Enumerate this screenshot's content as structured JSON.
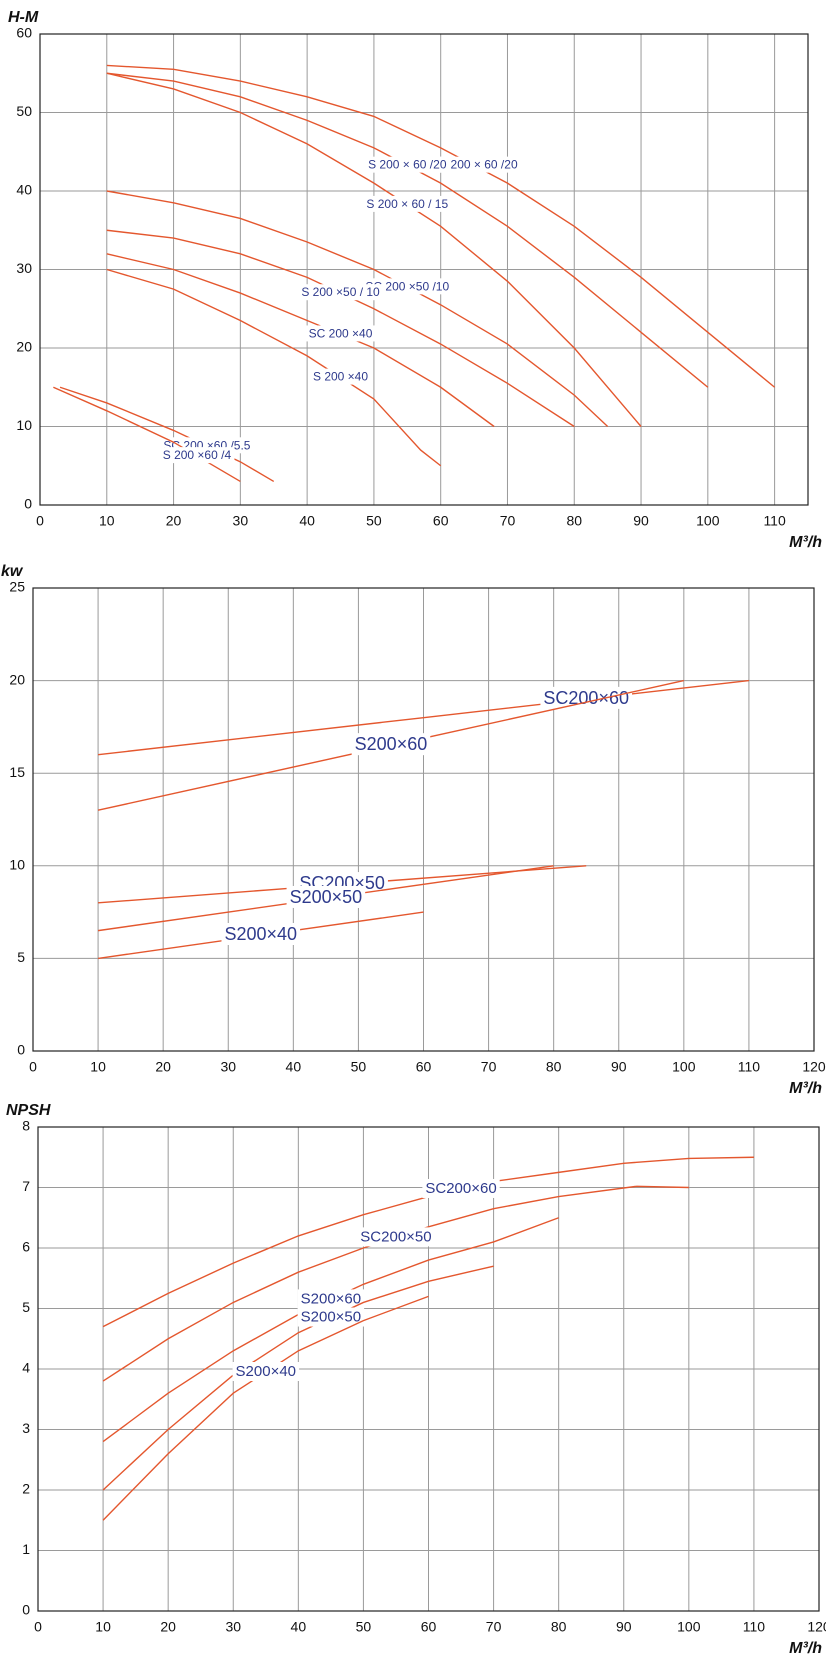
{
  "chart_data": [
    {
      "type": "line",
      "y_label": "H-M",
      "x_label": "M³/h",
      "color": "#e4572e",
      "grid": true,
      "xlim": [
        0,
        115
      ],
      "xticks": [
        0,
        10,
        20,
        30,
        40,
        50,
        60,
        70,
        80,
        90,
        100,
        110
      ],
      "ylim": [
        0,
        60
      ],
      "yticks": [
        0,
        10,
        20,
        30,
        40,
        50,
        60
      ],
      "series": [
        {
          "name": "SC 200 × 60 /20",
          "x": [
            10,
            20,
            30,
            40,
            50,
            60,
            70,
            80,
            90,
            100,
            110
          ],
          "values": [
            56,
            55.5,
            54,
            52,
            49.5,
            45.5,
            41,
            35.5,
            29,
            22,
            15
          ]
        },
        {
          "name": "S 200 × 60 /20",
          "x": [
            10,
            20,
            30,
            40,
            50,
            60,
            70,
            80,
            90,
            100
          ],
          "values": [
            55,
            54,
            52,
            49,
            45.5,
            41,
            35.5,
            29,
            22,
            15
          ]
        },
        {
          "name": "S 200 × 60 / 15",
          "x": [
            10,
            20,
            30,
            40,
            50,
            60,
            70,
            80,
            90
          ],
          "values": [
            55,
            53,
            50,
            46,
            41,
            35.5,
            28.5,
            20,
            10
          ]
        },
        {
          "name": "SC 200 ×50 /10",
          "x": [
            10,
            20,
            30,
            40,
            50,
            60,
            70,
            80,
            85
          ],
          "values": [
            40,
            38.5,
            36.5,
            33.5,
            30,
            25.5,
            20.5,
            14,
            10
          ]
        },
        {
          "name": "S 200 ×50 / 10",
          "x": [
            10,
            20,
            30,
            40,
            50,
            60,
            70,
            80
          ],
          "values": [
            35,
            34,
            32,
            29,
            25,
            20.5,
            15.5,
            10
          ]
        },
        {
          "name": "SC 200 ×40",
          "x": [
            10,
            20,
            30,
            40,
            50,
            60,
            68
          ],
          "values": [
            32,
            30,
            27,
            23.5,
            20,
            15,
            10
          ]
        },
        {
          "name": "S 200 ×40",
          "x": [
            10,
            20,
            30,
            40,
            50,
            57,
            60
          ],
          "values": [
            30,
            27.5,
            23.5,
            19,
            13.5,
            7,
            5
          ]
        },
        {
          "name": "SC 200 ×60 /5.5",
          "x": [
            3,
            10,
            20,
            30,
            35
          ],
          "values": [
            15,
            13,
            9.5,
            5.5,
            3
          ]
        },
        {
          "name": "S 200 ×60 /4",
          "x": [
            2,
            10,
            20,
            27,
            30
          ],
          "values": [
            15,
            12,
            8,
            4.5,
            3
          ]
        }
      ]
    },
    {
      "type": "line",
      "y_label": "kw",
      "x_label": "M³/h",
      "color": "#e4572e",
      "grid": true,
      "xlim": [
        0,
        120
      ],
      "xticks": [
        0,
        10,
        20,
        30,
        40,
        50,
        60,
        70,
        80,
        90,
        100,
        110,
        120
      ],
      "ylim": [
        0,
        25
      ],
      "yticks": [
        0,
        5,
        10,
        15,
        20,
        25
      ],
      "series": [
        {
          "name": "SC200×60",
          "x": [
            10,
            60,
            110
          ],
          "values": [
            16,
            18,
            20
          ]
        },
        {
          "name": "S200×60",
          "x": [
            10,
            100
          ],
          "values": [
            13,
            20
          ]
        },
        {
          "name": "SC200×50",
          "x": [
            10,
            85
          ],
          "values": [
            8,
            10
          ]
        },
        {
          "name": "S200×50",
          "x": [
            10,
            80
          ],
          "values": [
            6.5,
            10
          ]
        },
        {
          "name": "S200×40",
          "x": [
            10,
            60
          ],
          "values": [
            5,
            7.5
          ]
        }
      ]
    },
    {
      "type": "line",
      "y_label": "NPSH",
      "x_label": "M³/h",
      "color": "#e4572e",
      "grid": true,
      "xlim": [
        0,
        120
      ],
      "xticks": [
        0,
        10,
        20,
        30,
        40,
        50,
        60,
        70,
        80,
        90,
        100,
        110,
        120
      ],
      "ylim": [
        0,
        8
      ],
      "yticks": [
        0,
        1,
        2,
        3,
        4,
        5,
        6,
        7,
        8
      ],
      "series": [
        {
          "name": "SC200×60",
          "x": [
            10,
            20,
            30,
            40,
            50,
            60,
            70,
            80,
            90,
            100,
            110
          ],
          "values": [
            4.7,
            5.25,
            5.75,
            6.2,
            6.55,
            6.85,
            7.1,
            7.25,
            7.4,
            7.48,
            7.5
          ]
        },
        {
          "name": "SC200×50",
          "x": [
            10,
            20,
            30,
            40,
            50,
            60,
            70,
            80,
            92,
            100
          ],
          "values": [
            3.8,
            4.5,
            5.1,
            5.6,
            6.0,
            6.35,
            6.65,
            6.85,
            7.02,
            7.0
          ]
        },
        {
          "name": "S200×60",
          "x": [
            10,
            20,
            30,
            40,
            50,
            60,
            70,
            80
          ],
          "values": [
            2.8,
            3.6,
            4.3,
            4.9,
            5.4,
            5.8,
            6.1,
            6.5
          ]
        },
        {
          "name": "S200×50",
          "x": [
            10,
            20,
            30,
            40,
            50,
            60,
            70
          ],
          "values": [
            2.0,
            3.0,
            3.9,
            4.6,
            5.1,
            5.45,
            5.7
          ]
        },
        {
          "name": "S200×40",
          "x": [
            10,
            20,
            30,
            40,
            50,
            60
          ],
          "values": [
            1.5,
            2.6,
            3.6,
            4.3,
            4.8,
            5.2
          ]
        }
      ]
    }
  ]
}
